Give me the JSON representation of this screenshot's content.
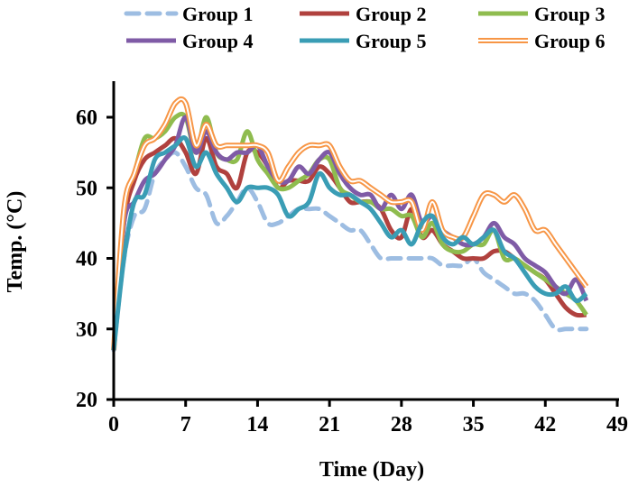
{
  "chart_data": {
    "type": "line",
    "title": "",
    "xlabel": "Time (Day)",
    "ylabel": "Temp. (°C)",
    "xlim": [
      0,
      49
    ],
    "ylim": [
      20,
      65
    ],
    "xticks": [
      0,
      7,
      14,
      21,
      28,
      35,
      42,
      49
    ],
    "yticks": [
      20,
      30,
      40,
      50,
      60
    ],
    "grid": false,
    "legend_placement": "top",
    "x": [
      0,
      1,
      2,
      3,
      4,
      5,
      6,
      7,
      8,
      9,
      10,
      11,
      12,
      13,
      14,
      15,
      16,
      17,
      18,
      19,
      20,
      21,
      22,
      23,
      24,
      25,
      26,
      27,
      28,
      29,
      30,
      31,
      32,
      33,
      34,
      35,
      36,
      37,
      38,
      39,
      40,
      41,
      42,
      43,
      44,
      45,
      46
    ],
    "series": [
      {
        "name": "Group 1",
        "color": "#9dbde2",
        "style": "dashed",
        "values": [
          27,
          40,
          46,
          47,
          52,
          54,
          55,
          53,
          50,
          49,
          45,
          46,
          48,
          50,
          48,
          45,
          45,
          46,
          47,
          47,
          47,
          46,
          45,
          44,
          44,
          42,
          40,
          40,
          40,
          40,
          40,
          40,
          39,
          39,
          39,
          40,
          38,
          37,
          36,
          35,
          35,
          34,
          32,
          30,
          30,
          30,
          30
        ]
      },
      {
        "name": "Group 2",
        "color": "#b0413e",
        "style": "solid",
        "values": [
          27,
          45,
          51,
          54,
          55,
          56,
          57,
          55,
          52,
          57,
          53,
          52,
          50,
          55,
          55,
          53,
          50,
          51,
          51,
          51,
          53,
          52,
          50,
          48,
          48,
          48,
          47,
          44,
          43,
          47,
          43,
          44,
          42,
          41,
          40,
          40,
          40,
          41,
          41,
          40,
          39,
          38,
          37,
          35,
          33,
          32,
          32
        ]
      },
      {
        "name": "Group 3",
        "color": "#8fbc4f",
        "style": "solid",
        "values": [
          27,
          47,
          52,
          57,
          57,
          58,
          60,
          60,
          55,
          60,
          55,
          54,
          54,
          58,
          54,
          52,
          50,
          50,
          51,
          52,
          54,
          54,
          50,
          49,
          48,
          48,
          47,
          47,
          46,
          46,
          43,
          45,
          42,
          41,
          41,
          42,
          42,
          44,
          40,
          40,
          39,
          38,
          37,
          36,
          35,
          34,
          32
        ]
      },
      {
        "name": "Group 4",
        "color": "#7f5ba6",
        "style": "solid",
        "values": [
          27,
          45,
          48,
          51,
          52,
          54,
          56,
          60,
          55,
          58,
          55,
          54,
          55,
          55,
          56,
          53,
          51,
          51,
          53,
          52,
          54,
          55,
          52,
          50,
          49,
          49,
          47,
          49,
          47,
          49,
          45,
          46,
          44,
          43,
          42,
          42,
          43,
          45,
          43,
          42,
          40,
          39,
          38,
          36,
          35,
          37,
          34
        ]
      },
      {
        "name": "Group 5",
        "color": "#3a9db5",
        "style": "solid",
        "values": [
          27,
          40,
          48,
          49,
          54,
          55,
          56,
          57,
          53,
          55,
          52,
          50,
          48,
          50,
          50,
          50,
          49,
          46,
          47,
          48,
          52,
          50,
          49,
          49,
          48,
          47,
          45,
          43,
          44,
          42,
          45,
          46,
          43,
          42,
          43,
          42,
          43,
          44,
          41,
          40,
          38,
          36,
          35,
          35,
          36,
          34,
          35
        ]
      },
      {
        "name": "Group 6",
        "color": "#f79646",
        "style": "double",
        "values": [
          27,
          47,
          52,
          56,
          57,
          59,
          62,
          62,
          56,
          59,
          56,
          56,
          56,
          56,
          56,
          55,
          51,
          53,
          55,
          56,
          56,
          56,
          53,
          51,
          51,
          50,
          49,
          48,
          48,
          48,
          44,
          48,
          44,
          43,
          43,
          46,
          49,
          49,
          48,
          49,
          47,
          44,
          44,
          42,
          40,
          38,
          36
        ]
      }
    ]
  }
}
